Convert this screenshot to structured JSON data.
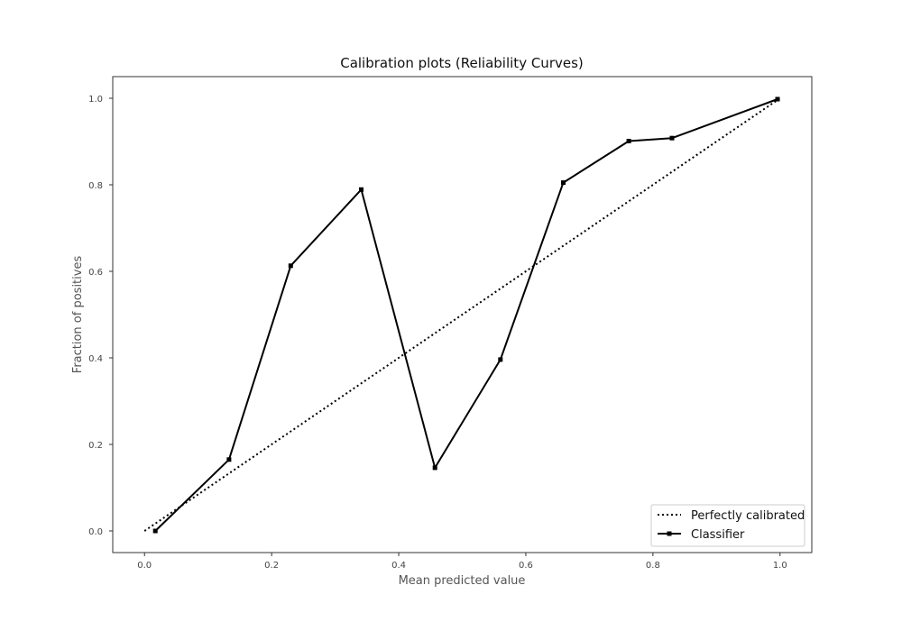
{
  "chart_data": {
    "type": "line",
    "title": "Calibration plots (Reliability Curves)",
    "xlabel": "Mean predicted value",
    "ylabel": "Fraction of positives",
    "xlim": [
      -0.05,
      1.05
    ],
    "ylim": [
      -0.05,
      1.05
    ],
    "xticks": [
      "0.0",
      "0.2",
      "0.4",
      "0.6",
      "0.8",
      "1.0"
    ],
    "yticks": [
      "0.0",
      "0.2",
      "0.4",
      "0.6",
      "0.8",
      "1.0"
    ],
    "grid": false,
    "legend_position": "lower-right",
    "series": [
      {
        "name": "Perfectly calibrated",
        "style": "dotted",
        "color": "#000000",
        "x": [
          0.0,
          1.0
        ],
        "y": [
          0.0,
          1.0
        ]
      },
      {
        "name": "Classifier",
        "style": "solid-square-markers",
        "color": "#000000",
        "x": [
          0.017,
          0.133,
          0.23,
          0.341,
          0.457,
          0.56,
          0.659,
          0.762,
          0.83,
          0.996
        ],
        "y": [
          0.0,
          0.165,
          0.613,
          0.789,
          0.146,
          0.396,
          0.805,
          0.901,
          0.908,
          0.998
        ]
      }
    ]
  }
}
